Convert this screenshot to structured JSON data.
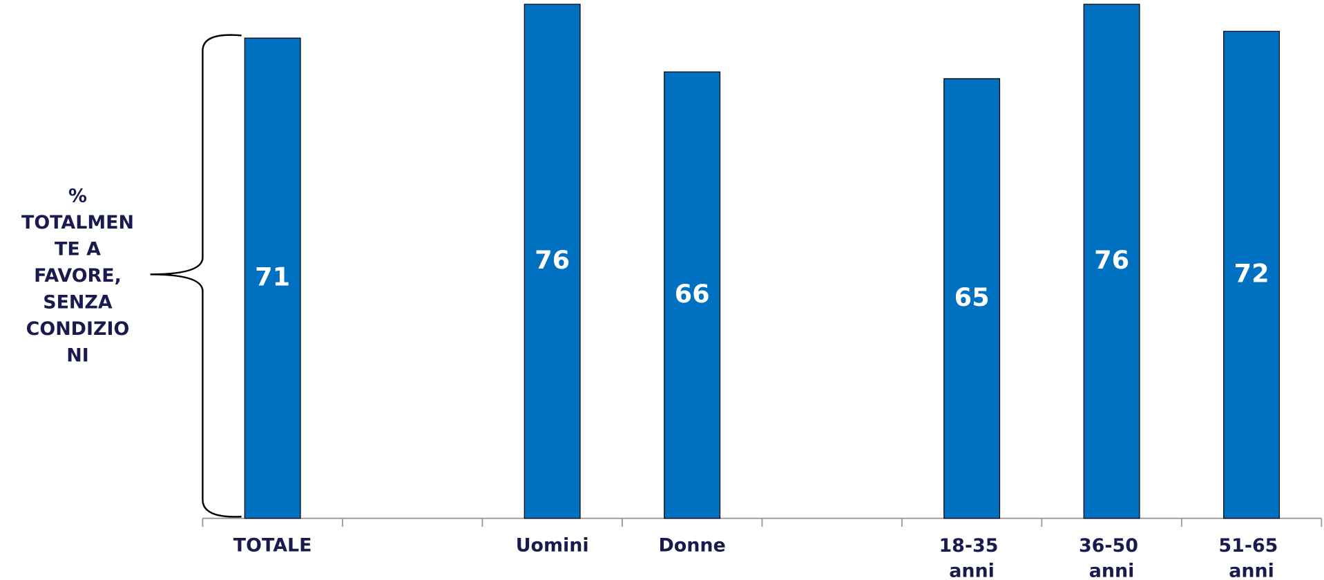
{
  "chart_data": {
    "type": "bar",
    "ylabel_lines": [
      "%",
      "TOTALMEN",
      "TE A",
      "FAVORE,",
      "SENZA",
      "CONDIZIO",
      "NI"
    ],
    "categories": [
      "TOTALE",
      null,
      "Uomini",
      "Donne",
      null,
      "18-35 anni",
      "36-50 anni",
      "51-65 anni"
    ],
    "values": [
      71,
      null,
      76,
      66,
      null,
      65,
      76,
      72
    ],
    "color": "#0070c0",
    "ylim": [
      0,
      76
    ]
  }
}
